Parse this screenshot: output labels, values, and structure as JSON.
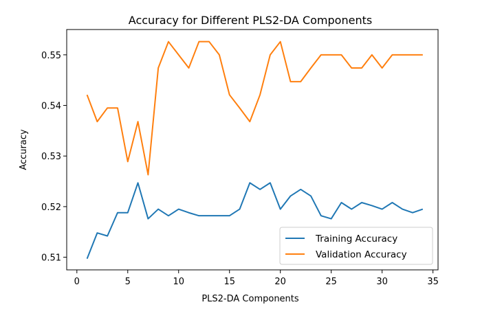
{
  "chart_data": {
    "type": "line",
    "title": "Accuracy for Different PLS2-DA Components",
    "xlabel": "PLS2-DA Components",
    "ylabel": "Accuracy",
    "xlim": [
      -1,
      35.5
    ],
    "ylim": [
      0.5075,
      0.555
    ],
    "xticks": [
      0,
      5,
      10,
      15,
      20,
      25,
      30,
      35
    ],
    "yticks": [
      0.51,
      0.52,
      0.53,
      0.54,
      0.55
    ],
    "grid": false,
    "legend_position": "lower right",
    "x": [
      1,
      2,
      3,
      4,
      5,
      6,
      7,
      8,
      9,
      10,
      11,
      12,
      13,
      14,
      15,
      16,
      17,
      18,
      19,
      20,
      21,
      22,
      23,
      24,
      25,
      26,
      27,
      28,
      29,
      30,
      31,
      32,
      33,
      34
    ],
    "series": [
      {
        "name": "Training Accuracy",
        "color": "#1f77b4",
        "values": [
          0.5097,
          0.5148,
          0.5142,
          0.5188,
          0.5188,
          0.5247,
          0.5176,
          0.5195,
          0.5182,
          0.5195,
          0.5188,
          0.5182,
          0.5182,
          0.5182,
          0.5182,
          0.5195,
          0.5247,
          0.5234,
          0.5247,
          0.5195,
          0.5221,
          0.5234,
          0.5221,
          0.5182,
          0.5176,
          0.5208,
          0.5195,
          0.5208,
          0.5202,
          0.5195,
          0.5208,
          0.5195,
          0.5188,
          0.5195
        ]
      },
      {
        "name": "Validation Accuracy",
        "color": "#ff7f0e",
        "values": [
          0.5421,
          0.5368,
          0.5395,
          0.5395,
          0.5289,
          0.5368,
          0.5263,
          0.5474,
          0.5526,
          0.55,
          0.5474,
          0.5526,
          0.5526,
          0.55,
          0.5421,
          0.5395,
          0.5368,
          0.5421,
          0.55,
          0.5526,
          0.5447,
          0.5447,
          0.5474,
          0.55,
          0.55,
          0.55,
          0.5474,
          0.5474,
          0.55,
          0.5474,
          0.55,
          0.55,
          0.55,
          0.55
        ]
      }
    ]
  }
}
